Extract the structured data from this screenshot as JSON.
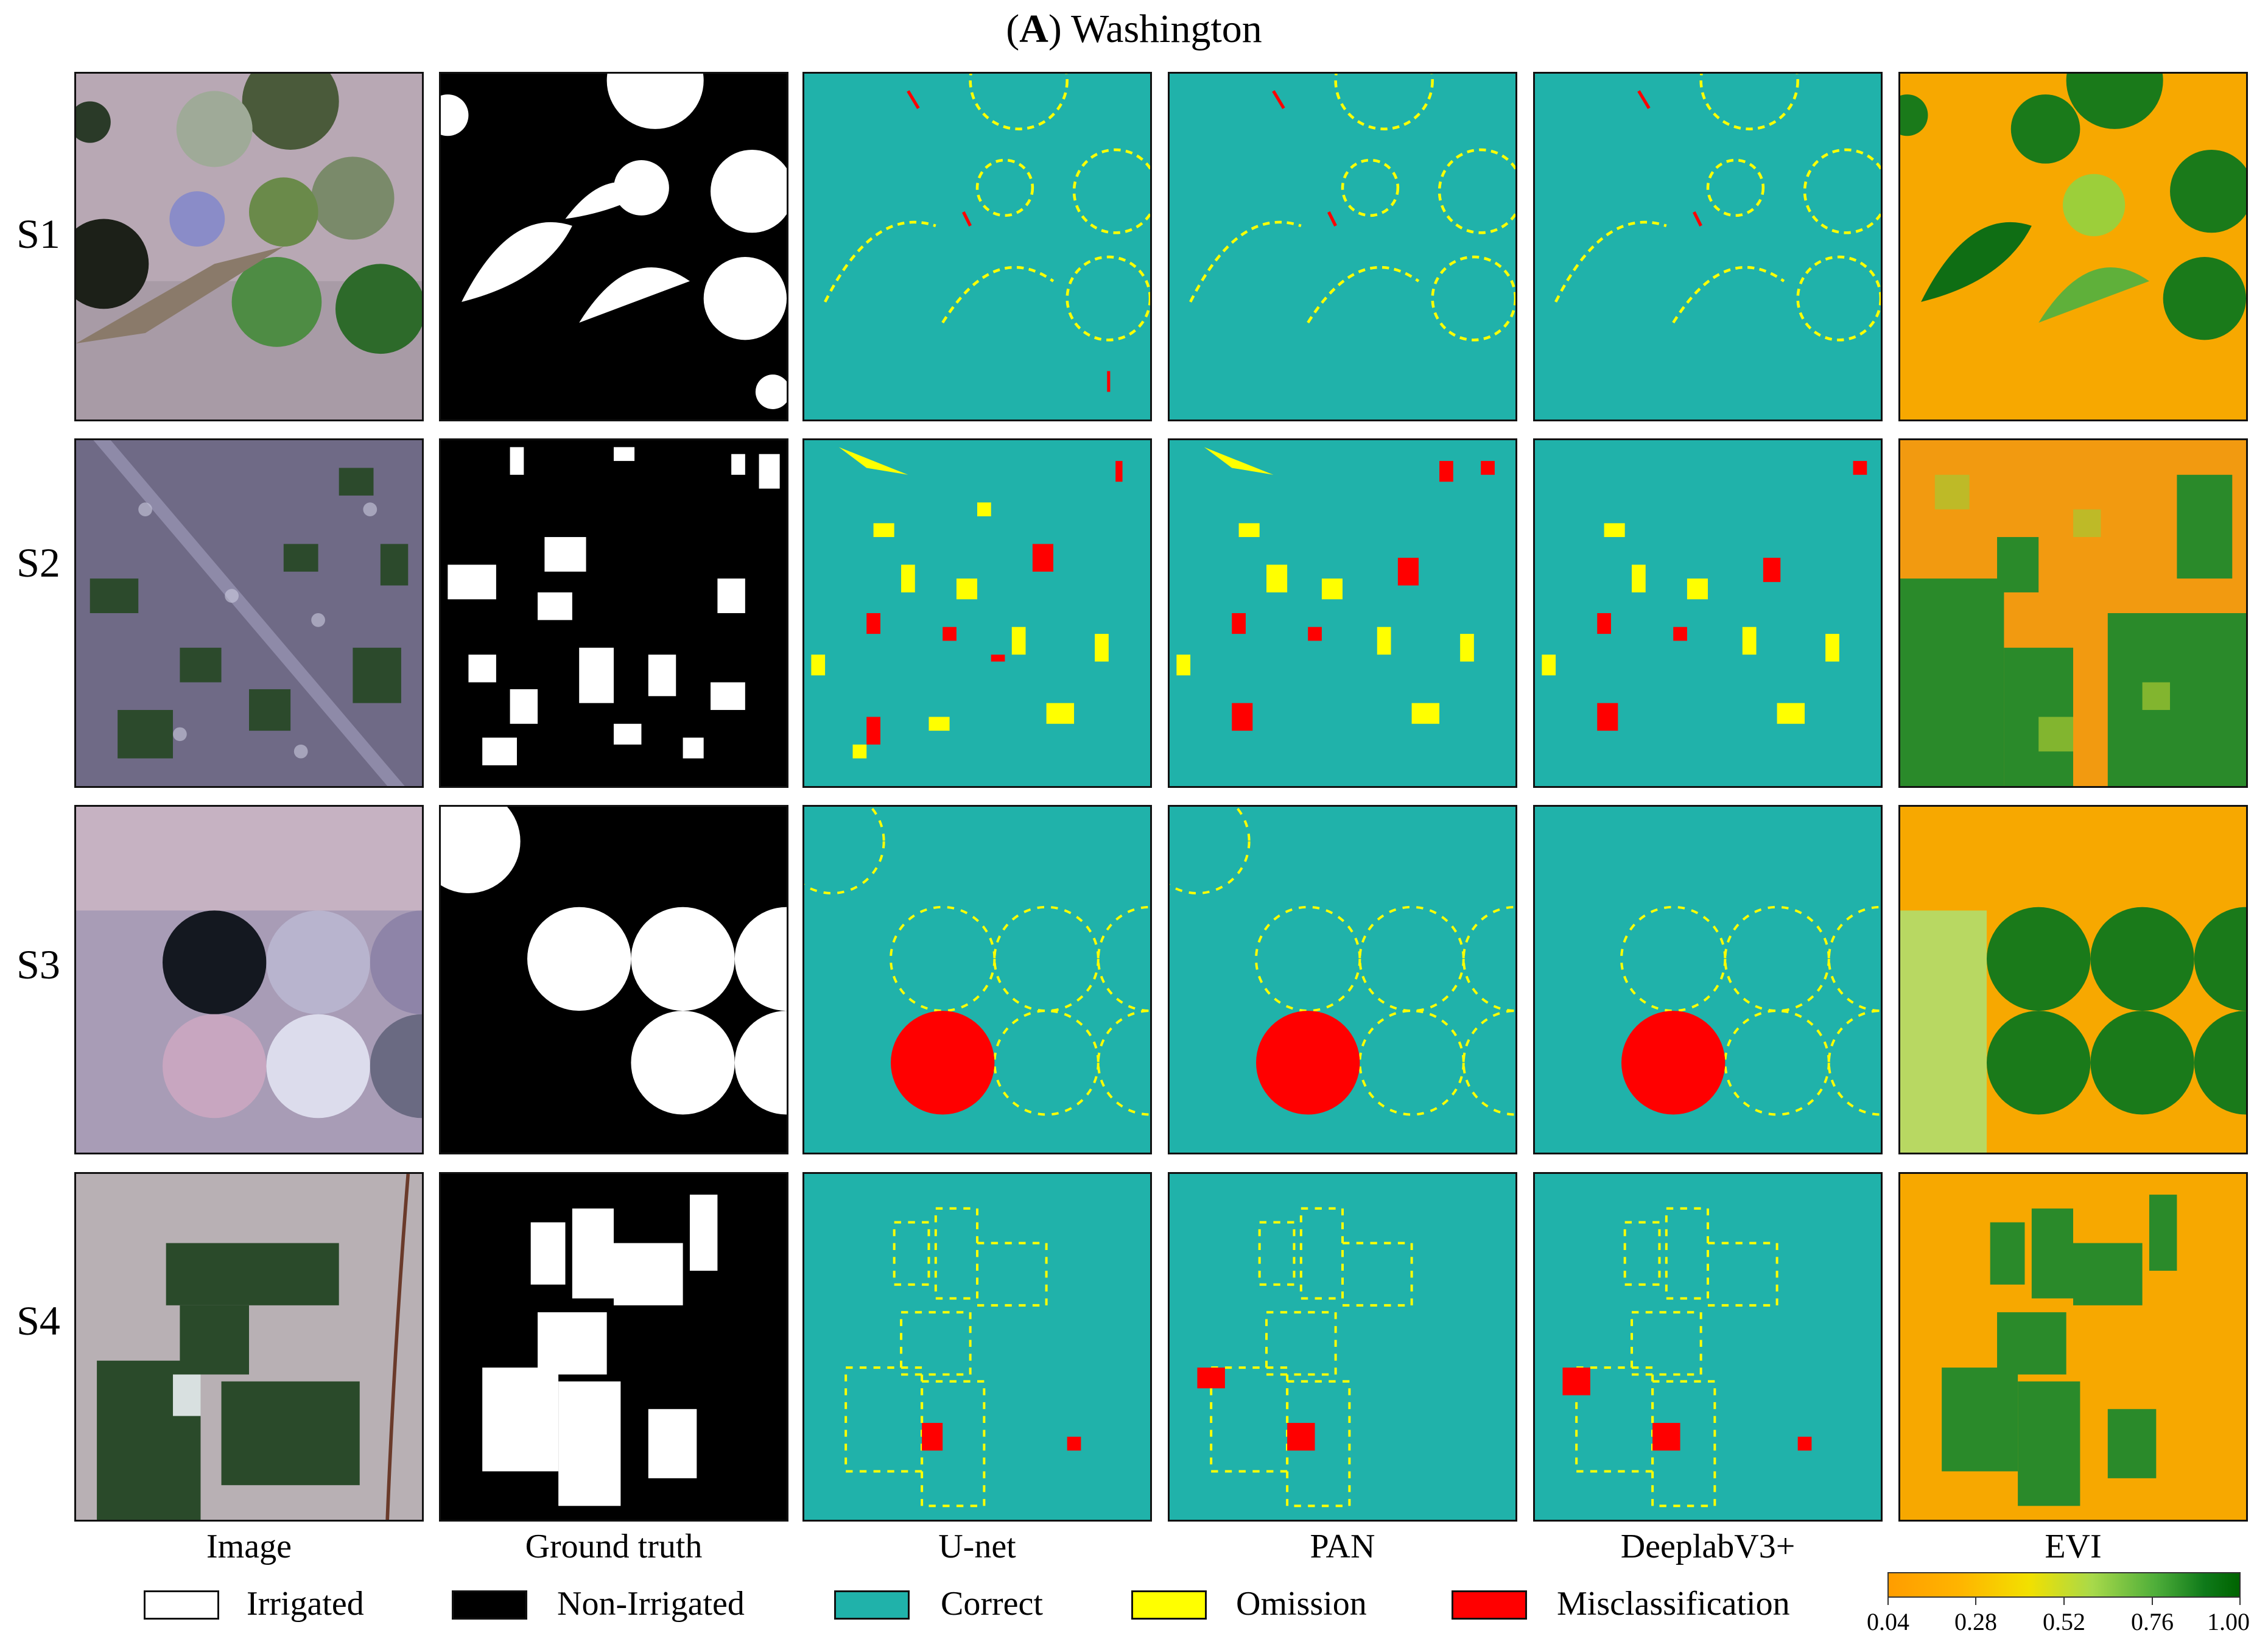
{
  "title": {
    "letter": "A",
    "open": "(",
    "close": ")",
    "text": " Washington"
  },
  "rows": [
    "S1",
    "S2",
    "S3",
    "S4"
  ],
  "columns": [
    "Image",
    "Ground truth",
    "U-net",
    "PAN",
    "DeeplabV3+",
    "EVI"
  ],
  "legend": [
    {
      "label": "Irrigated",
      "color": "#ffffff"
    },
    {
      "label": "Non-Irrigated",
      "color": "#000000"
    },
    {
      "label": "Correct",
      "color": "#20b2aa"
    },
    {
      "label": "Omission",
      "color": "#ffff00"
    },
    {
      "label": "Misclassification",
      "color": "#ff0000"
    }
  ],
  "colorbar": {
    "ticks": [
      "0.04",
      "0.28",
      "0.52",
      "0.76",
      "1.00"
    ]
  }
}
